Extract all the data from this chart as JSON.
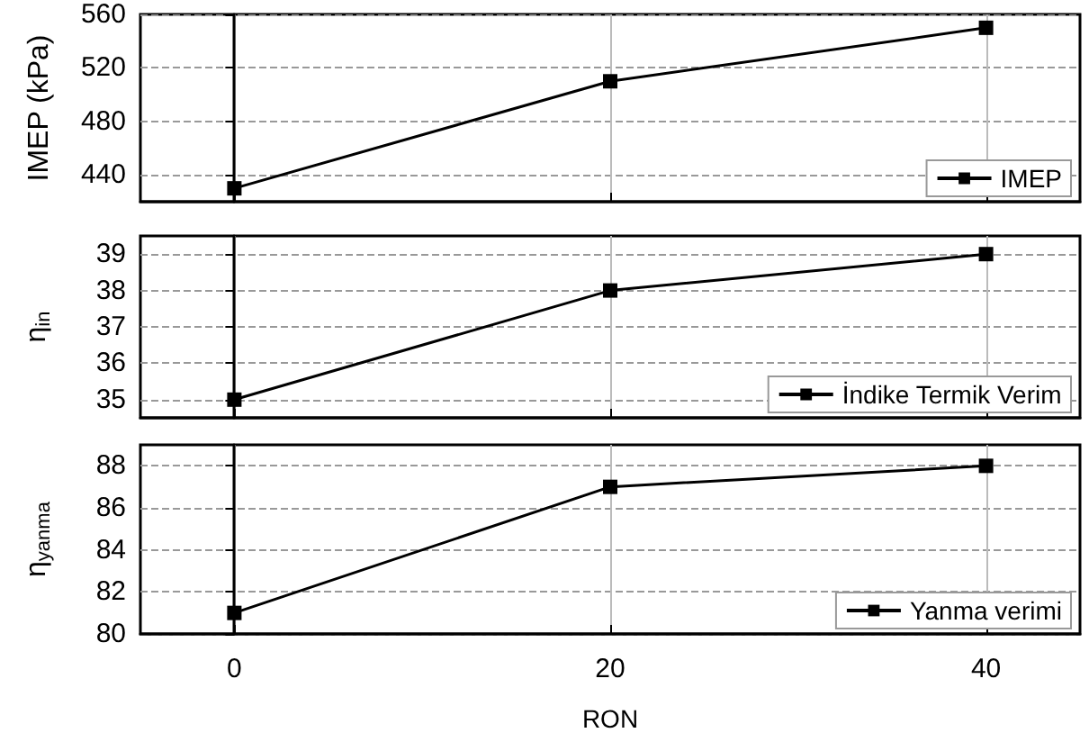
{
  "chart_data": [
    {
      "type": "line",
      "x": [
        0,
        20,
        40
      ],
      "xlim": [
        -5,
        45
      ],
      "xticks": [
        0,
        20,
        40
      ],
      "ylim": [
        420,
        560
      ],
      "yticks": [
        440,
        480,
        520,
        560
      ],
      "ylabel": "IMEP (kPa)",
      "marker": "square",
      "grid": true,
      "legend": "bottom right",
      "tick_labels": "y",
      "series": [
        {
          "name": "IMEP",
          "color": "#000000",
          "values": [
            430,
            510,
            550
          ]
        }
      ]
    },
    {
      "type": "line",
      "x": [
        0,
        20,
        40
      ],
      "xlim": [
        -5,
        45
      ],
      "xticks": [
        0,
        20,
        40
      ],
      "ylim": [
        34.5,
        39.5
      ],
      "yticks": [
        35,
        36,
        37,
        38,
        39
      ],
      "ylabel": "η$_{in}$",
      "marker": "square",
      "grid": true,
      "legend": "bottom right",
      "tick_labels": "y",
      "series": [
        {
          "name": "İndike Termik Verim",
          "color": "#000000",
          "values": [
            35,
            38,
            39
          ]
        }
      ]
    },
    {
      "type": "line",
      "x": [
        0,
        20,
        40
      ],
      "xlim": [
        -5,
        45
      ],
      "xticks": [
        0,
        20,
        40
      ],
      "ylim": [
        80,
        89
      ],
      "yticks": [
        80,
        82,
        84,
        86,
        88
      ],
      "ylabel": "η$_{yanma}$",
      "xlabel": "RON",
      "marker": "square",
      "grid": true,
      "legend": "bottom right",
      "series": [
        {
          "name": "Yanma verimi",
          "color": "#000000",
          "values": [
            81,
            87,
            88
          ]
        }
      ]
    }
  ]
}
